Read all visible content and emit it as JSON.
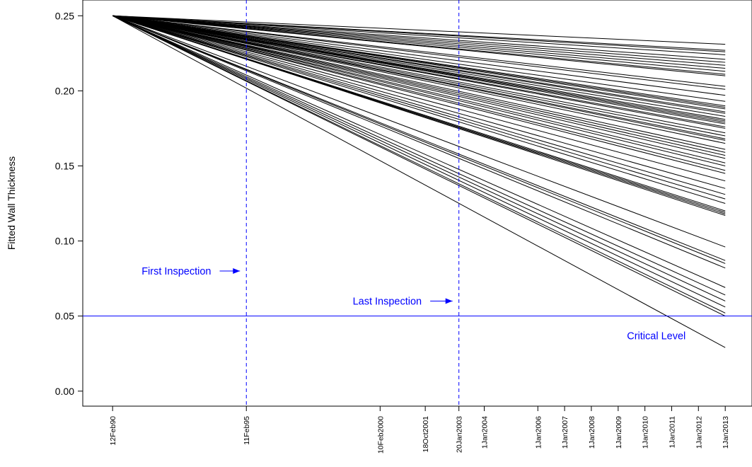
{
  "chart_data": {
    "type": "line",
    "title": "",
    "ylabel": "Fitted Wall Thickness",
    "xlabel": "",
    "x_axis_type": "date",
    "xlim": [
      "1989-01-01",
      "2014-01-01"
    ],
    "ylim": [
      -0.01,
      0.2605
    ],
    "grid": false,
    "legend": "none",
    "y_ticks": [
      0.0,
      0.05,
      0.1,
      0.15,
      0.2,
      0.25
    ],
    "y_tick_labels": [
      "0.00",
      "0.05",
      "0.10",
      "0.15",
      "0.20",
      "0.25"
    ],
    "x_ticks": [
      "1990-02-12",
      "1995-02-11",
      "2000-02-10",
      "2001-10-18",
      "2003-01-20",
      "2004-01-01",
      "2006-01-01",
      "2007-01-01",
      "2008-01-01",
      "2009-01-01",
      "2010-01-01",
      "2011-01-01",
      "2012-01-01",
      "2013-01-01"
    ],
    "x_tick_labels": [
      "12Feb90",
      "11Feb95",
      "10Feb2000",
      "18Oct2001",
      "20Jan2003",
      "1Jan2004",
      "1Jan2006",
      "1Jan2007",
      "1Jan2008",
      "1Jan2009",
      "1Jan2010",
      "1Jan2011",
      "1Jan2012",
      "1Jan2013"
    ],
    "series_start": {
      "x": "1990-02-12",
      "y": 0.25
    },
    "series_end_x": "2013-01-01",
    "series_end_values": [
      0.231,
      0.227,
      0.226,
      0.224,
      0.221,
      0.219,
      0.217,
      0.215,
      0.213,
      0.211,
      0.21,
      0.203,
      0.201,
      0.197,
      0.193,
      0.19,
      0.189,
      0.188,
      0.186,
      0.185,
      0.183,
      0.181,
      0.18,
      0.179,
      0.178,
      0.176,
      0.175,
      0.172,
      0.17,
      0.168,
      0.167,
      0.165,
      0.161,
      0.159,
      0.157,
      0.155,
      0.152,
      0.15,
      0.147,
      0.145,
      0.14,
      0.135,
      0.131,
      0.128,
      0.125,
      0.12,
      0.119,
      0.118,
      0.117,
      0.096,
      0.087,
      0.085,
      0.082,
      0.069,
      0.064,
      0.06,
      0.056,
      0.052,
      0.05,
      0.029
    ],
    "reference_lines": {
      "horizontal": [
        {
          "y": 0.05,
          "label": "Critical Level",
          "label_x": "2009-05-01",
          "label_y": 0.037
        }
      ],
      "vertical": [
        {
          "x": "1995-02-11",
          "label": "First Inspection",
          "label_x": "1991-03-15",
          "label_y": 0.08
        },
        {
          "x": "2003-01-20",
          "label": "Last Inspection",
          "label_x": "1999-02-01",
          "label_y": 0.06
        }
      ]
    },
    "colors": {
      "series": "#000000",
      "reference": "#0000ff",
      "axis": "#000000"
    }
  }
}
